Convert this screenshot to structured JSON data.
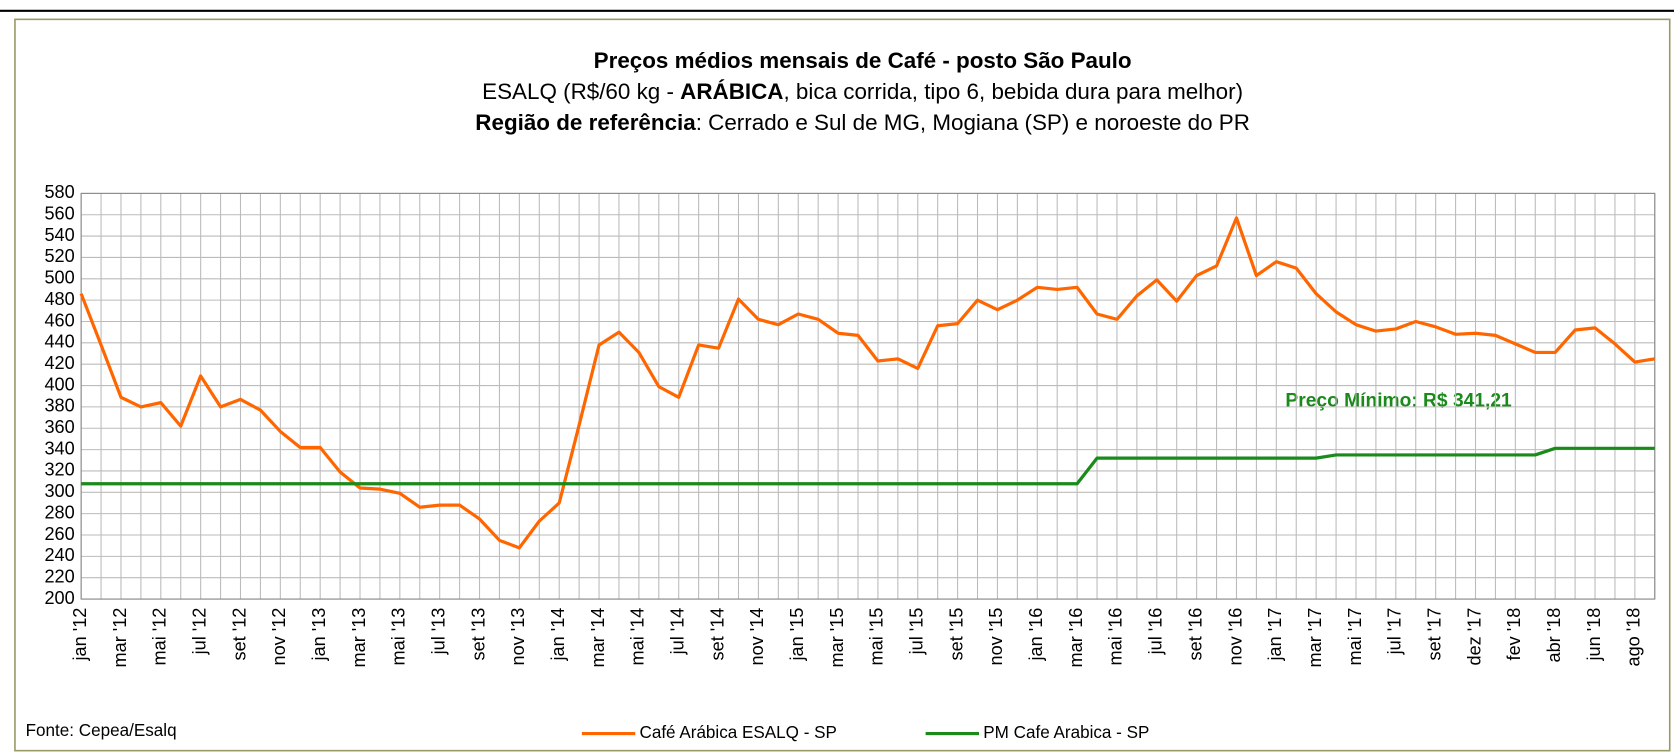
{
  "chart_data": {
    "type": "line",
    "title": "Preços médios mensais de Café - posto São Paulo",
    "subtitle": [
      "ESALQ (R$/60 kg - ",
      "ARÁBICA",
      ", bica corrida, tipo 6, bebida dura para melhor)"
    ],
    "subtitle2": [
      "Região de referência",
      ": Cerrado e Sul de MG, Mogiana (SP) e noroeste do PR"
    ],
    "source": "Fonte: Cepea/Esalq",
    "annotation": "Preço Mínimo: R$ 341,21",
    "categories": [
      "jan '12",
      null,
      "mar '12",
      null,
      "mai '12",
      null,
      "jul '12",
      null,
      "set '12",
      null,
      "nov '12",
      null,
      "jan '13",
      null,
      "mar '13",
      null,
      "mai '13",
      null,
      "jul '13",
      null,
      "set '13",
      null,
      "nov '13",
      null,
      "jan '14",
      null,
      "mar '14",
      null,
      "mai '14",
      null,
      "jul '14",
      null,
      "set '14",
      null,
      "nov '14",
      null,
      "jan '15",
      null,
      "mar '15",
      null,
      "mai '15",
      null,
      "jul '15",
      null,
      "set '15",
      null,
      "nov '15",
      null,
      "jan '16",
      null,
      "mar '16",
      null,
      "mai '16",
      null,
      "jul '16",
      null,
      "set '16",
      null,
      "nov '16",
      null,
      "jan '17",
      null,
      "mar '17",
      null,
      "mai '17",
      null,
      "jul '17",
      null,
      "set '17",
      null,
      "dez '17",
      null,
      "fev '18",
      null,
      "abr '18",
      null,
      "jun '18",
      null,
      "ago '18",
      null
    ],
    "series": [
      {
        "name": "Café Arábica ESALQ - SP",
        "color": "#ff6600",
        "values": [
          486,
          438,
          389,
          380,
          384,
          362,
          409,
          380,
          387,
          377,
          357,
          342,
          342,
          319,
          304,
          303,
          299,
          286,
          288,
          288,
          275,
          255,
          248,
          273,
          290,
          363,
          438,
          450,
          431,
          399,
          389,
          438,
          435,
          481,
          462,
          457,
          467,
          462,
          449,
          447,
          423,
          425,
          416,
          456,
          458,
          480,
          471,
          480,
          492,
          490,
          492,
          467,
          462,
          484,
          499,
          479,
          503,
          512,
          557,
          503,
          516,
          510,
          486,
          469,
          457,
          451,
          453,
          460,
          455,
          448,
          449,
          447,
          439,
          431,
          431,
          452,
          454,
          439,
          422,
          425
        ]
      },
      {
        "name": "PM Cafe Arabica - SP",
        "color": "#1a8a1a",
        "values": [
          308,
          308,
          308,
          308,
          308,
          308,
          308,
          308,
          308,
          308,
          308,
          308,
          308,
          308,
          308,
          308,
          308,
          308,
          308,
          308,
          308,
          308,
          308,
          308,
          308,
          308,
          308,
          308,
          308,
          308,
          308,
          308,
          308,
          308,
          308,
          308,
          308,
          308,
          308,
          308,
          308,
          308,
          308,
          308,
          308,
          308,
          308,
          308,
          308,
          308,
          308,
          332,
          332,
          332,
          332,
          332,
          332,
          332,
          332,
          332,
          332,
          332,
          332,
          335,
          335,
          335,
          335,
          335,
          335,
          335,
          335,
          335,
          335,
          335,
          341.21,
          341.21,
          341.21,
          341.21,
          341.21,
          341.21
        ]
      }
    ],
    "ylim": [
      200,
      580
    ],
    "yticks": [
      200,
      220,
      240,
      260,
      280,
      300,
      320,
      340,
      360,
      380,
      400,
      420,
      440,
      460,
      480,
      500,
      520,
      540,
      560,
      580
    ],
    "grid": true,
    "legend": "bottom"
  }
}
